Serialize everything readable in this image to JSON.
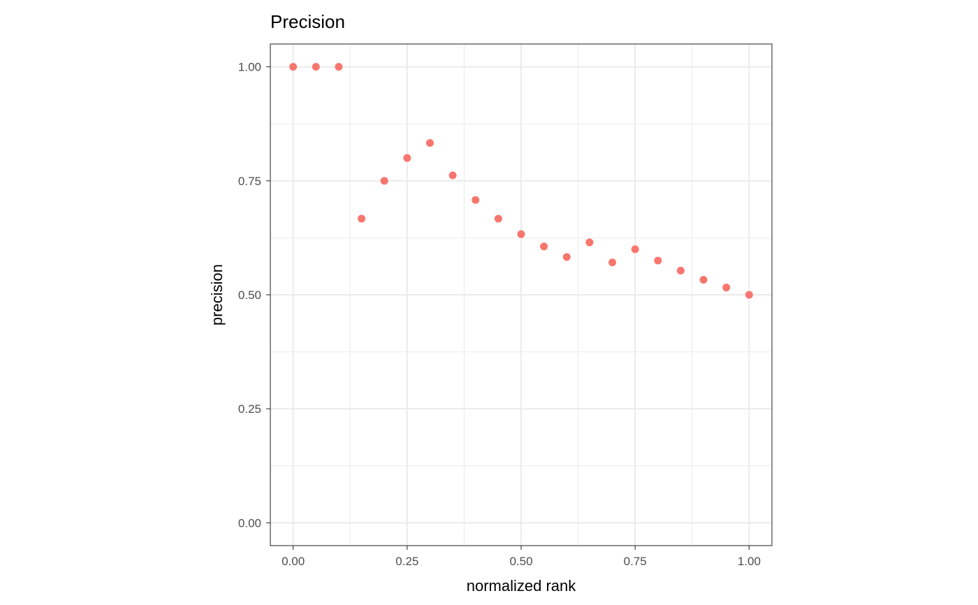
{
  "chart_data": {
    "type": "scatter",
    "title": "Precision",
    "xlabel": "normalized rank",
    "ylabel": "precision",
    "xlim": [
      -0.05,
      1.05
    ],
    "ylim": [
      -0.05,
      1.05
    ],
    "x_ticks": [
      0,
      0.25,
      0.5,
      0.75,
      1
    ],
    "x_tick_labels": [
      "0.00",
      "0.25",
      "0.50",
      "0.75",
      "1.00"
    ],
    "y_ticks": [
      0,
      0.25,
      0.5,
      0.75,
      1
    ],
    "y_tick_labels": [
      "0.00",
      "0.25",
      "0.50",
      "0.75",
      "1.00"
    ],
    "grid": true,
    "legend": "none",
    "point_color": "#F8766D",
    "series": [
      {
        "x": [
          0.0,
          0.05,
          0.1,
          0.15,
          0.2,
          0.25,
          0.3,
          0.35,
          0.4,
          0.45,
          0.5,
          0.55,
          0.6,
          0.65,
          0.7,
          0.75,
          0.8,
          0.85,
          0.9,
          0.95,
          1.0
        ],
        "y": [
          1.0,
          1.0,
          1.0,
          0.667,
          0.75,
          0.8,
          0.833,
          0.762,
          0.708,
          0.667,
          0.633,
          0.606,
          0.583,
          0.615,
          0.571,
          0.6,
          0.575,
          0.553,
          0.533,
          0.516,
          0.5
        ]
      }
    ]
  }
}
